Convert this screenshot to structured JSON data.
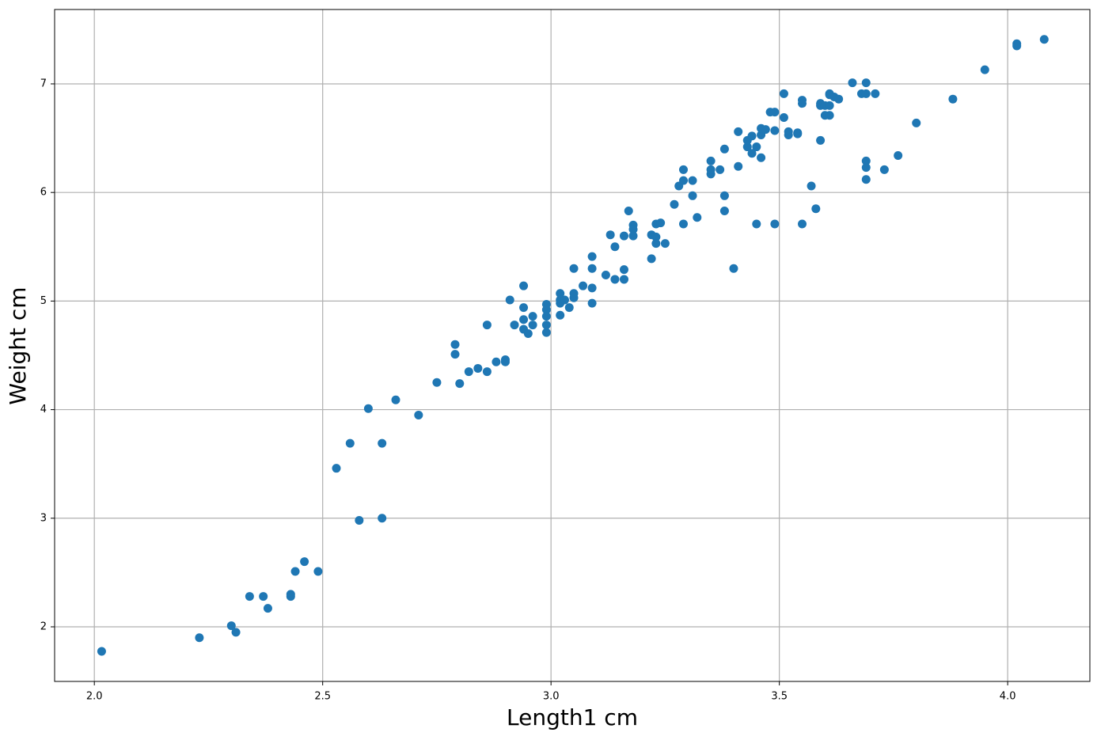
{
  "chart_data": {
    "type": "scatter",
    "xlabel": "Length1 cm",
    "ylabel": "Weight cm",
    "color": "#1f77b4",
    "grid": true,
    "xlim": [
      1.913,
      4.18
    ],
    "ylim": [
      1.497,
      7.685
    ],
    "xticks": [
      {
        "value": 2,
        "label": "2.0"
      },
      2.5,
      {
        "value": 3,
        "label": "3.0"
      },
      3.5,
      {
        "value": 4,
        "label": "4.0"
      }
    ],
    "yticks": [
      2,
      3,
      4,
      5,
      6,
      7
    ],
    "x": [
      2.016,
      2.23,
      2.3,
      2.31,
      2.34,
      2.37,
      2.38,
      2.43,
      2.43,
      2.44,
      2.46,
      2.49,
      2.53,
      2.56,
      2.58,
      2.6,
      2.63,
      2.63,
      2.66,
      2.71,
      2.75,
      2.79,
      2.79,
      2.8,
      2.82,
      2.84,
      2.86,
      2.86,
      2.88,
      2.9,
      2.9,
      2.91,
      2.92,
      2.94,
      2.94,
      2.94,
      2.94,
      2.95,
      2.96,
      2.96,
      2.99,
      2.99,
      2.99,
      2.99,
      2.99,
      3.02,
      3.02,
      3.02,
      3.02,
      3.03,
      3.04,
      3.05,
      3.05,
      3.05,
      3.07,
      3.09,
      3.09,
      3.09,
      3.09,
      3.12,
      3.13,
      3.14,
      3.14,
      3.16,
      3.16,
      3.16,
      3.17,
      3.18,
      3.18,
      3.18,
      3.22,
      3.22,
      3.23,
      3.23,
      3.23,
      3.24,
      3.25,
      3.27,
      3.28,
      3.29,
      3.29,
      3.29,
      3.31,
      3.31,
      3.32,
      3.35,
      3.35,
      3.35,
      3.37,
      3.38,
      3.38,
      3.38,
      3.4,
      3.41,
      3.41,
      3.43,
      3.43,
      3.44,
      3.44,
      3.45,
      3.45,
      3.46,
      3.46,
      3.46,
      3.47,
      3.48,
      3.49,
      3.49,
      3.49,
      3.51,
      3.51,
      3.52,
      3.52,
      3.54,
      3.54,
      3.55,
      3.55,
      3.55,
      3.57,
      3.58,
      3.59,
      3.59,
      3.59,
      3.6,
      3.6,
      3.61,
      3.61,
      3.61,
      3.61,
      3.62,
      3.63,
      3.66,
      3.68,
      3.69,
      3.69,
      3.69,
      3.69,
      3.69,
      3.71,
      3.73,
      3.76,
      3.8,
      3.88,
      3.95,
      4.02,
      4.02,
      4.08
    ],
    "y": [
      1.774,
      1.9,
      2.01,
      1.95,
      2.28,
      2.28,
      2.17,
      2.3,
      2.28,
      2.51,
      2.6,
      2.51,
      3.46,
      3.69,
      2.98,
      4.01,
      3.69,
      3.0,
      4.09,
      3.95,
      4.25,
      4.6,
      4.51,
      4.24,
      4.35,
      4.38,
      4.35,
      4.78,
      4.44,
      4.46,
      4.44,
      5.01,
      4.78,
      5.14,
      4.94,
      4.83,
      4.74,
      4.7,
      4.86,
      4.78,
      4.97,
      4.92,
      4.86,
      4.78,
      4.71,
      5.01,
      5.07,
      4.87,
      4.98,
      5.01,
      4.94,
      5.03,
      5.07,
      5.3,
      5.14,
      5.41,
      5.3,
      5.12,
      4.98,
      5.24,
      5.61,
      5.2,
      5.5,
      5.29,
      5.6,
      5.2,
      5.83,
      5.7,
      5.66,
      5.6,
      5.61,
      5.39,
      5.71,
      5.59,
      5.53,
      5.72,
      5.53,
      5.89,
      6.06,
      6.21,
      6.11,
      5.71,
      6.11,
      5.97,
      5.77,
      6.29,
      6.17,
      6.21,
      6.21,
      6.4,
      5.97,
      5.83,
      5.3,
      6.56,
      6.24,
      6.42,
      6.48,
      6.36,
      6.52,
      6.42,
      5.71,
      6.53,
      6.59,
      6.32,
      6.58,
      6.74,
      6.57,
      5.71,
      6.74,
      6.91,
      6.69,
      6.56,
      6.53,
      6.55,
      6.54,
      5.71,
      6.85,
      6.82,
      6.06,
      5.85,
      6.82,
      6.8,
      6.48,
      6.71,
      6.8,
      6.91,
      6.71,
      6.8,
      6.9,
      6.88,
      6.86,
      7.01,
      6.91,
      6.23,
      6.12,
      6.29,
      7.01,
      6.91,
      6.91,
      6.21,
      6.34,
      6.64,
      6.86,
      7.13,
      7.37,
      7.35,
      7.41
    ]
  }
}
